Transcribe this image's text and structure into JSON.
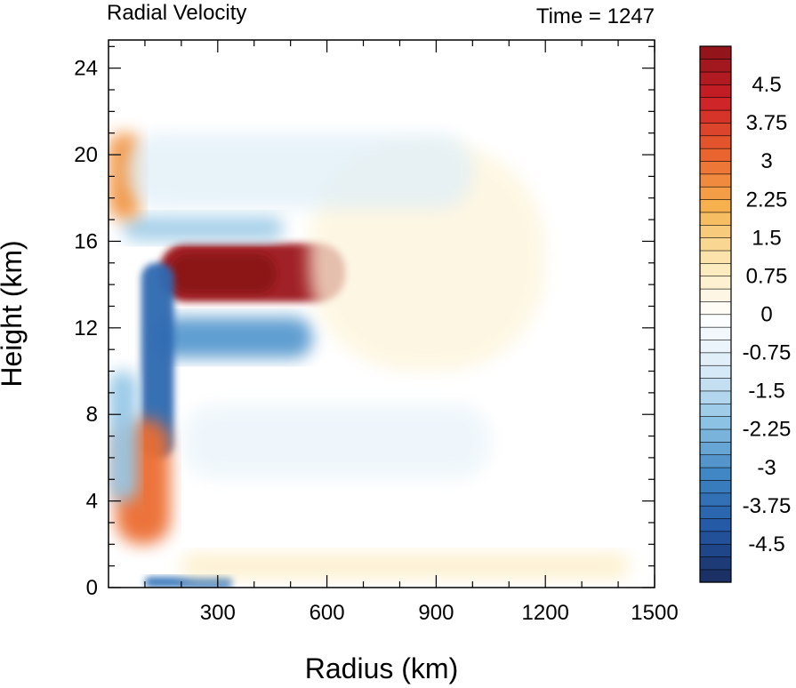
{
  "chart_data": {
    "type": "heatmap",
    "title": "Radial Velocity",
    "subtitle": "Time = 1247",
    "xlabel": "Radius (km)",
    "ylabel": "Height (km)",
    "xlim": [
      0,
      1500
    ],
    "ylim": [
      0,
      25.3
    ],
    "x_ticks": [
      300,
      600,
      900,
      1200,
      1500
    ],
    "y_ticks": [
      0,
      4,
      8,
      12,
      16,
      20,
      24
    ],
    "colorbar": {
      "range": [
        -5.25,
        5.25
      ],
      "step": 0.25,
      "tick_values": [
        4.5,
        3.75,
        3,
        2.25,
        1.5,
        0.75,
        0,
        -0.75,
        -1.5,
        -2.25,
        -3,
        -3.75,
        -4.5
      ],
      "tick_labels": [
        "4.5",
        "3.75",
        "3",
        "2.25",
        "1.5",
        "0.75",
        "0",
        "-0.75",
        "-1.5",
        "-2.25",
        "-3",
        "-3.75",
        "-4.5"
      ],
      "colors_low_to_high": [
        "#1a2c5e",
        "#2357a5",
        "#3f86c4",
        "#8ec3e4",
        "#dbecf7",
        "#ffffff",
        "#fbe7b2",
        "#f6b24e",
        "#e9622e",
        "#cd1f27",
        "#8b1319"
      ]
    },
    "features": [
      {
        "name": "upper-level outflow maximum",
        "r": [
          140,
          650
        ],
        "z": [
          13.2,
          15.9
        ],
        "value": 5.0
      },
      {
        "name": "upper outflow core",
        "r": [
          170,
          460
        ],
        "z": [
          13.6,
          15.4
        ],
        "value": 5.25
      },
      {
        "name": "mid-level inflow band",
        "r": [
          130,
          560
        ],
        "z": [
          10.6,
          12.5
        ],
        "value": -2.8
      },
      {
        "name": "inflow band above outflow",
        "r": [
          40,
          480
        ],
        "z": [
          16.0,
          17.2
        ],
        "value": -1.8
      },
      {
        "name": "near-axis high outflow",
        "r": [
          0,
          90
        ],
        "z": [
          17.0,
          21.0
        ],
        "value": 2.5
      },
      {
        "name": "eyewall inflow streak",
        "r": [
          90,
          180
        ],
        "z": [
          6.0,
          15.0
        ],
        "value": -3.8
      },
      {
        "name": "low-level outflow near axis",
        "r": [
          20,
          170
        ],
        "z": [
          2.0,
          7.8
        ],
        "value": 3.0
      },
      {
        "name": "inner inflow column",
        "r": [
          0,
          80
        ],
        "z": [
          4.0,
          10.0
        ],
        "value": -2.0
      },
      {
        "name": "boundary-layer inflow",
        "r": [
          100,
          340
        ],
        "z": [
          0,
          0.5
        ],
        "value": -3.5
      },
      {
        "name": "weak mid-level inflow",
        "r": [
          200,
          1050
        ],
        "z": [
          5.0,
          8.5
        ],
        "value": -0.6
      },
      {
        "name": "weak upper outflow",
        "r": [
          550,
          1200
        ],
        "z": [
          10.0,
          20.5
        ],
        "value": 0.5
      },
      {
        "name": "near-surface outflow",
        "r": [
          200,
          1430
        ],
        "z": [
          0.4,
          1.6
        ],
        "value": 0.8
      },
      {
        "name": "upper inflow streaks",
        "r": [
          50,
          1000
        ],
        "z": [
          17.5,
          21.0
        ],
        "value": -0.9
      }
    ]
  }
}
